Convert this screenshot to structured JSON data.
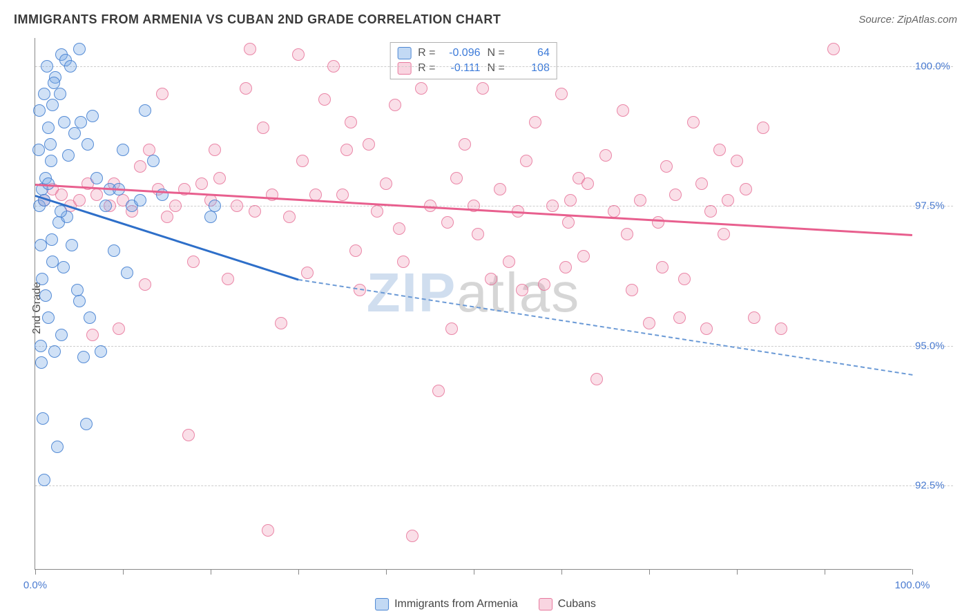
{
  "header": {
    "title": "IMMIGRANTS FROM ARMENIA VS CUBAN 2ND GRADE CORRELATION CHART",
    "source_prefix": "Source: ",
    "source_name": "ZipAtlas.com"
  },
  "axes": {
    "y_label": "2nd Grade",
    "x_min": 0.0,
    "x_max": 100.0,
    "x_min_label": "0.0%",
    "x_max_label": "100.0%",
    "y_min": 91.0,
    "y_max": 100.5,
    "y_ticks": [
      {
        "value": 100.0,
        "label": "100.0%"
      },
      {
        "value": 97.5,
        "label": "97.5%"
      },
      {
        "value": 95.0,
        "label": "95.0%"
      },
      {
        "value": 92.5,
        "label": "92.5%"
      }
    ],
    "x_ticks_minor": [
      0,
      10,
      20,
      30,
      40,
      50,
      60,
      70,
      80,
      90,
      100
    ],
    "grid_color": "#cccccc",
    "axis_color": "#888888",
    "tick_label_color": "#4a7bd0"
  },
  "watermark": {
    "zip": "ZIP",
    "atlas": "atlas"
  },
  "stats": {
    "series1": {
      "r_label": "R =",
      "r_value": "-0.096",
      "n_label": "N =",
      "n_value": "64"
    },
    "series2": {
      "r_label": "R =",
      "r_value": "-0.111",
      "n_label": "N =",
      "n_value": "108"
    }
  },
  "legend": {
    "series1_label": "Immigrants from Armenia",
    "series2_label": "Cubans"
  },
  "colors": {
    "blue_fill": "rgba(120,170,230,0.35)",
    "blue_stroke": "rgba(70,130,210,0.9)",
    "pink_fill": "rgba(240,150,180,0.30)",
    "pink_stroke": "rgba(230,110,150,0.8)",
    "trend_blue": "#2e6fc9",
    "trend_blue_dash": "#6b9ad6",
    "trend_pink": "#e85f8e",
    "background": "#ffffff"
  },
  "styling": {
    "marker_radius": 9,
    "marker_border_width": 1.5,
    "title_fontsize": 18,
    "label_fontsize": 16,
    "tick_fontsize": 15,
    "watermark_fontsize": 80,
    "trend_line_width": 3,
    "trend_dash_width": 2
  },
  "trend_lines": {
    "blue_solid": {
      "x1": 0.0,
      "y1": 97.7,
      "x2": 30.0,
      "y2": 96.2
    },
    "blue_dashed": {
      "x1": 30.0,
      "y1": 96.2,
      "x2": 100.0,
      "y2": 94.5
    },
    "pink_solid": {
      "x1": 0.0,
      "y1": 97.9,
      "x2": 100.0,
      "y2": 97.0
    }
  },
  "series_blue": [
    [
      0.5,
      97.5
    ],
    [
      0.8,
      97.8
    ],
    [
      1.0,
      97.6
    ],
    [
      1.2,
      98.0
    ],
    [
      1.5,
      97.9
    ],
    [
      1.8,
      98.3
    ],
    [
      0.5,
      99.2
    ],
    [
      1.0,
      99.5
    ],
    [
      1.5,
      98.9
    ],
    [
      2.0,
      99.3
    ],
    [
      2.3,
      99.8
    ],
    [
      2.8,
      99.5
    ],
    [
      3.0,
      100.2
    ],
    [
      3.5,
      100.1
    ],
    [
      0.8,
      96.2
    ],
    [
      1.2,
      95.9
    ],
    [
      2.0,
      96.5
    ],
    [
      1.5,
      95.5
    ],
    [
      0.6,
      95.0
    ],
    [
      3.0,
      95.2
    ],
    [
      0.7,
      94.7
    ],
    [
      4.0,
      100.0
    ],
    [
      5.0,
      100.3
    ],
    [
      4.5,
      98.8
    ],
    [
      5.2,
      99.0
    ],
    [
      6.0,
      98.6
    ],
    [
      6.5,
      99.1
    ],
    [
      3.8,
      98.4
    ],
    [
      2.2,
      94.9
    ],
    [
      5.5,
      94.8
    ],
    [
      4.2,
      96.8
    ],
    [
      5.0,
      95.8
    ],
    [
      7.0,
      98.0
    ],
    [
      8.0,
      97.5
    ],
    [
      8.5,
      97.8
    ],
    [
      2.5,
      93.2
    ],
    [
      9.0,
      96.7
    ],
    [
      9.5,
      97.8
    ],
    [
      10.0,
      98.5
    ],
    [
      10.5,
      96.3
    ],
    [
      11.0,
      97.5
    ],
    [
      12.0,
      97.6
    ],
    [
      12.5,
      99.2
    ],
    [
      7.5,
      94.9
    ],
    [
      1.0,
      92.6
    ],
    [
      13.5,
      98.3
    ],
    [
      14.5,
      97.7
    ],
    [
      20.0,
      97.3
    ],
    [
      20.5,
      97.5
    ],
    [
      3.2,
      96.4
    ],
    [
      2.7,
      97.2
    ],
    [
      1.7,
      98.6
    ],
    [
      0.9,
      93.7
    ],
    [
      4.8,
      96.0
    ],
    [
      6.2,
      95.5
    ],
    [
      3.6,
      97.3
    ],
    [
      2.1,
      99.7
    ],
    [
      1.3,
      100.0
    ],
    [
      0.4,
      98.5
    ],
    [
      2.9,
      97.4
    ],
    [
      5.8,
      93.6
    ],
    [
      3.3,
      99.0
    ],
    [
      1.9,
      96.9
    ],
    [
      0.6,
      96.8
    ]
  ],
  "series_pink": [
    [
      1.0,
      97.6
    ],
    [
      2.0,
      97.8
    ],
    [
      3.0,
      97.7
    ],
    [
      4.0,
      97.5
    ],
    [
      5.0,
      97.6
    ],
    [
      6.0,
      97.9
    ],
    [
      7.0,
      97.7
    ],
    [
      8.5,
      97.5
    ],
    [
      9.0,
      97.9
    ],
    [
      10.0,
      97.6
    ],
    [
      11.0,
      97.4
    ],
    [
      12.0,
      98.2
    ],
    [
      13.0,
      98.5
    ],
    [
      14.0,
      97.8
    ],
    [
      14.5,
      99.5
    ],
    [
      15.0,
      97.3
    ],
    [
      16.0,
      97.5
    ],
    [
      17.0,
      97.8
    ],
    [
      18.0,
      96.5
    ],
    [
      19.0,
      97.9
    ],
    [
      20.0,
      97.6
    ],
    [
      21.0,
      98.0
    ],
    [
      22.0,
      96.2
    ],
    [
      23.0,
      97.5
    ],
    [
      24.0,
      99.6
    ],
    [
      24.5,
      100.3
    ],
    [
      25.0,
      97.4
    ],
    [
      26.0,
      98.9
    ],
    [
      27.0,
      97.7
    ],
    [
      28.0,
      95.4
    ],
    [
      29.0,
      97.3
    ],
    [
      30.0,
      100.2
    ],
    [
      30.5,
      98.3
    ],
    [
      31.0,
      96.3
    ],
    [
      32.0,
      97.7
    ],
    [
      33.0,
      99.4
    ],
    [
      34.0,
      100.0
    ],
    [
      35.0,
      97.7
    ],
    [
      35.5,
      98.5
    ],
    [
      36.0,
      99.0
    ],
    [
      37.0,
      96.0
    ],
    [
      38.0,
      98.6
    ],
    [
      39.0,
      97.4
    ],
    [
      40.0,
      97.9
    ],
    [
      41.0,
      99.3
    ],
    [
      42.0,
      96.5
    ],
    [
      43.0,
      91.6
    ],
    [
      44.0,
      99.6
    ],
    [
      45.0,
      97.5
    ],
    [
      46.0,
      94.2
    ],
    [
      47.0,
      97.2
    ],
    [
      48.0,
      98.0
    ],
    [
      49.0,
      98.6
    ],
    [
      50.0,
      97.5
    ],
    [
      50.5,
      97.0
    ],
    [
      51.0,
      99.6
    ],
    [
      52.0,
      96.2
    ],
    [
      53.0,
      97.8
    ],
    [
      54.0,
      96.5
    ],
    [
      55.0,
      97.4
    ],
    [
      56.0,
      98.3
    ],
    [
      57.0,
      99.0
    ],
    [
      58.0,
      96.1
    ],
    [
      59.0,
      97.5
    ],
    [
      60.0,
      99.5
    ],
    [
      60.5,
      96.4
    ],
    [
      61.0,
      97.6
    ],
    [
      62.0,
      98.0
    ],
    [
      62.5,
      96.6
    ],
    [
      63.0,
      97.9
    ],
    [
      64.0,
      94.4
    ],
    [
      65.0,
      98.4
    ],
    [
      66.0,
      97.4
    ],
    [
      67.0,
      99.2
    ],
    [
      68.0,
      96.0
    ],
    [
      69.0,
      97.6
    ],
    [
      70.0,
      95.4
    ],
    [
      71.0,
      97.2
    ],
    [
      72.0,
      98.2
    ],
    [
      73.0,
      97.7
    ],
    [
      74.0,
      96.2
    ],
    [
      75.0,
      99.0
    ],
    [
      76.0,
      97.9
    ],
    [
      76.5,
      95.3
    ],
    [
      77.0,
      97.4
    ],
    [
      78.0,
      98.5
    ],
    [
      79.0,
      97.6
    ],
    [
      80.0,
      98.3
    ],
    [
      81.0,
      97.8
    ],
    [
      82.0,
      95.5
    ],
    [
      83.0,
      98.9
    ],
    [
      91.0,
      100.3
    ],
    [
      26.5,
      91.7
    ],
    [
      17.5,
      93.4
    ],
    [
      6.5,
      95.2
    ],
    [
      9.5,
      95.3
    ],
    [
      12.5,
      96.1
    ],
    [
      20.5,
      98.5
    ],
    [
      36.5,
      96.7
    ],
    [
      41.5,
      97.1
    ],
    [
      47.5,
      95.3
    ],
    [
      55.5,
      96.0
    ],
    [
      60.8,
      97.2
    ],
    [
      67.5,
      97.0
    ],
    [
      73.5,
      95.5
    ],
    [
      85.0,
      95.3
    ],
    [
      78.5,
      97.0
    ],
    [
      71.5,
      96.4
    ]
  ]
}
